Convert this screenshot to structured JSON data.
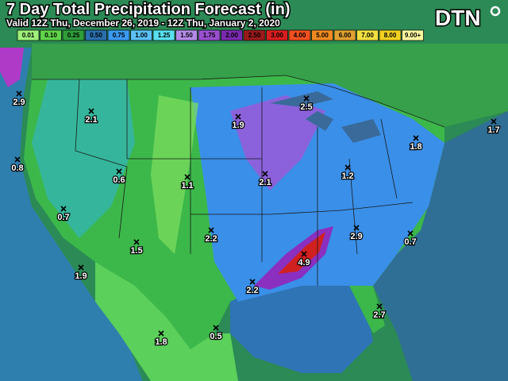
{
  "header": {
    "title": "7 Day Total Precipitation Forecast (in)",
    "subtitle": "Valid 12Z Thu, December 26, 2019 - 12Z Thu, January 2, 2020",
    "logo": "DTN"
  },
  "legend": [
    {
      "label": "0.01",
      "color": "#9ef07a"
    },
    {
      "label": "0.10",
      "color": "#5fd44a"
    },
    {
      "label": "0.25",
      "color": "#2f9e3a"
    },
    {
      "label": "0.50",
      "color": "#2a6fae"
    },
    {
      "label": "0.75",
      "color": "#3a9af0"
    },
    {
      "label": "1.00",
      "color": "#5ac0f5"
    },
    {
      "label": "1.25",
      "color": "#58e0f0"
    },
    {
      "label": "1.50",
      "color": "#b48ae8"
    },
    {
      "label": "1.75",
      "color": "#9a4fd0"
    },
    {
      "label": "2.00",
      "color": "#7a2ab0"
    },
    {
      "label": "2.50",
      "color": "#9a1a1a"
    },
    {
      "label": "3.00",
      "color": "#d81e1e"
    },
    {
      "label": "4.00",
      "color": "#f05020"
    },
    {
      "label": "5.00",
      "color": "#f08a20"
    },
    {
      "label": "6.00",
      "color": "#e0a030"
    },
    {
      "label": "7.00",
      "color": "#f0e040"
    },
    {
      "label": "8.00",
      "color": "#f0d020"
    },
    {
      "label": "9.00+",
      "color": "#fff8a0"
    }
  ],
  "points": [
    {
      "label": "2.9"
    },
    {
      "label": "2.1"
    },
    {
      "label": "1.9"
    },
    {
      "label": "2.5"
    },
    {
      "label": "1.7"
    },
    {
      "label": "1.8"
    },
    {
      "label": "0.8"
    },
    {
      "label": "0.6"
    },
    {
      "label": "1.1"
    },
    {
      "label": "2.1"
    },
    {
      "label": "1.2"
    },
    {
      "label": "0.7"
    },
    {
      "label": "2.2"
    },
    {
      "label": "2.9"
    },
    {
      "label": "0.7"
    },
    {
      "label": "1.5"
    },
    {
      "label": "4.9"
    },
    {
      "label": "1.9"
    },
    {
      "label": "2.2"
    },
    {
      "label": "2.7"
    },
    {
      "label": "1.8"
    },
    {
      "label": "0.5"
    }
  ]
}
